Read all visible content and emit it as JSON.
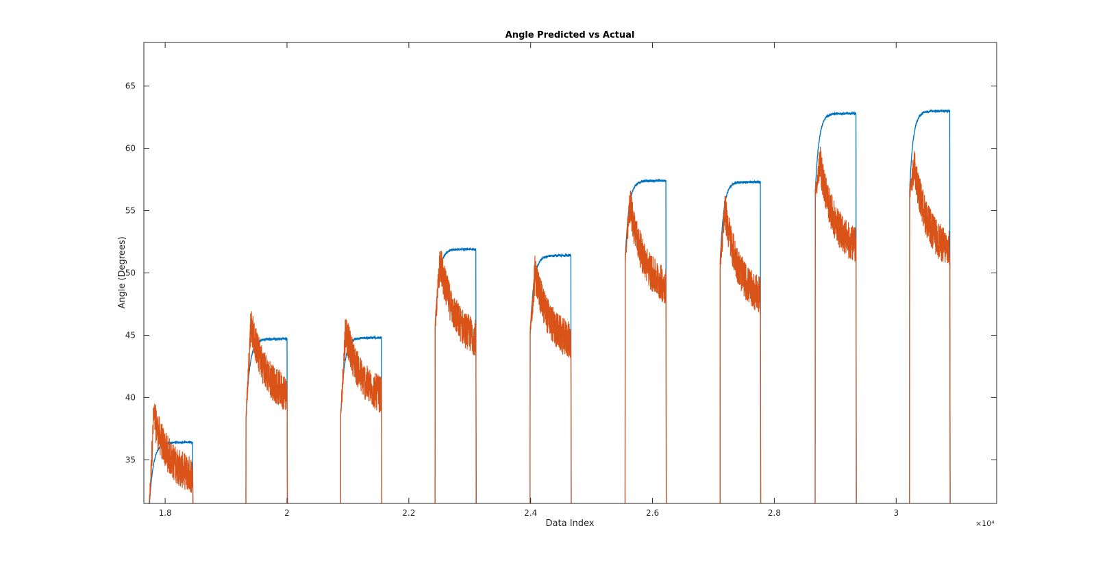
{
  "chart_data": {
    "type": "line",
    "title": "Angle Predicted vs Actual",
    "xlabel": "Data Index",
    "ylabel": "Angle (Degrees)",
    "x_exponent_label": "×10⁴",
    "x_scale_multiplier": 10000,
    "xlim": [
      1.765,
      3.165
    ],
    "ylim": [
      31.5,
      68.5
    ],
    "x_ticks": [
      1.8,
      2.0,
      2.2,
      2.4,
      2.6,
      2.8,
      3.0
    ],
    "x_tick_labels": [
      "1.8",
      "2",
      "2.2",
      "2.4",
      "2.6",
      "2.8",
      "3"
    ],
    "y_ticks": [
      35,
      40,
      45,
      50,
      55,
      60,
      65
    ],
    "y_tick_labels": [
      "35",
      "40",
      "45",
      "50",
      "55",
      "60",
      "65"
    ],
    "grid": false,
    "series_colors": [
      "#0072BD",
      "#D95319"
    ],
    "segments": [
      {
        "start": 1.7725,
        "end": 1.845,
        "peak": 38.5,
        "actual_end": 36.4,
        "predicted_end": 33.3
      },
      {
        "start": 1.9325,
        "end": 2.0,
        "peak": 46.0,
        "actual_end": 44.7,
        "predicted_end": 39.8
      },
      {
        "start": 2.088,
        "end": 2.155,
        "peak": 45.5,
        "actual_end": 44.8,
        "predicted_end": 39.7
      },
      {
        "start": 2.243,
        "end": 2.31,
        "peak": 51.0,
        "actual_end": 51.9,
        "predicted_end": 44.2
      },
      {
        "start": 2.399,
        "end": 2.466,
        "peak": 50.0,
        "actual_end": 51.4,
        "predicted_end": 44.0
      },
      {
        "start": 2.555,
        "end": 2.622,
        "peak": 55.5,
        "actual_end": 57.4,
        "predicted_end": 48.3
      },
      {
        "start": 2.711,
        "end": 2.777,
        "peak": 55.0,
        "actual_end": 57.3,
        "predicted_end": 47.5
      },
      {
        "start": 2.867,
        "end": 2.934,
        "peak": 58.8,
        "actual_end": 62.8,
        "predicted_end": 51.5
      },
      {
        "start": 3.022,
        "end": 3.088,
        "peak": 58.5,
        "actual_end": 63.0,
        "predicted_end": 51.2
      }
    ]
  }
}
